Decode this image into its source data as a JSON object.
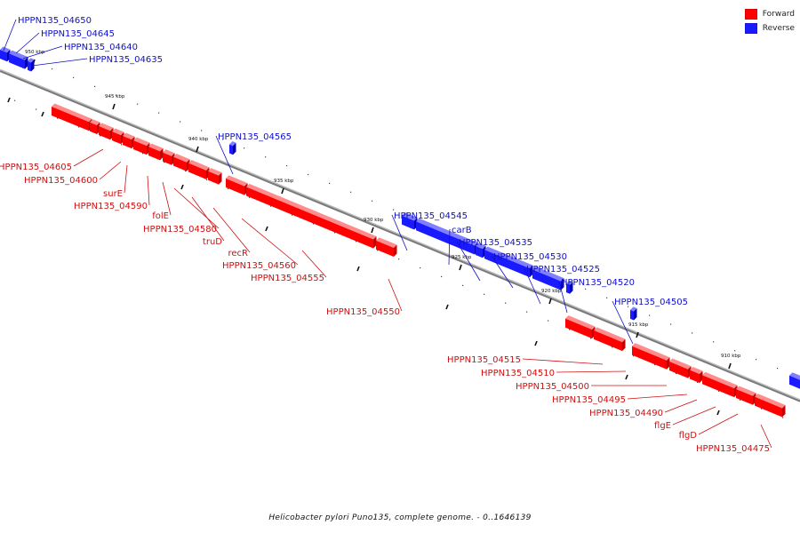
{
  "legend": {
    "forward_label": "Forward",
    "reverse_label": "Reverse",
    "forward_color": "#ff0000",
    "reverse_color": "#1a1aff"
  },
  "caption": "Helicobacter pylori Puno135, complete genome. - 0..1646139",
  "backbone_color": "#7a7a7a",
  "tick_labels": [
    "950 kbp",
    "945 kbp",
    "940 kbp",
    "935 kbp",
    "930 kbp",
    "925 kbp",
    "920 kbp",
    "915 kbp",
    "910 kbp"
  ],
  "genes": {
    "reverse": [
      "HPPN135_04650",
      "HPPN135_04645",
      "HPPN135_04640",
      "HPPN135_04635",
      "HPPN135_04565",
      "HPPN135_04545",
      "carB",
      "HPPN135_04535",
      "HPPN135_04530",
      "HPPN135_04525",
      "HPPN135_04520",
      "HPPN135_04505"
    ],
    "forward": [
      "HPPN135_04605",
      "HPPN135_04600",
      "surE",
      "HPPN135_04590",
      "folE",
      "HPPN135_04580",
      "truD",
      "recR",
      "HPPN135_04560",
      "HPPN135_04555",
      "HPPN135_04550",
      "HPPN135_04515",
      "HPPN135_04510",
      "HPPN135_04500",
      "HPPN135_04495",
      "HPPN135_04490",
      "flgE",
      "flgD",
      "HPPN135_04475"
    ]
  }
}
